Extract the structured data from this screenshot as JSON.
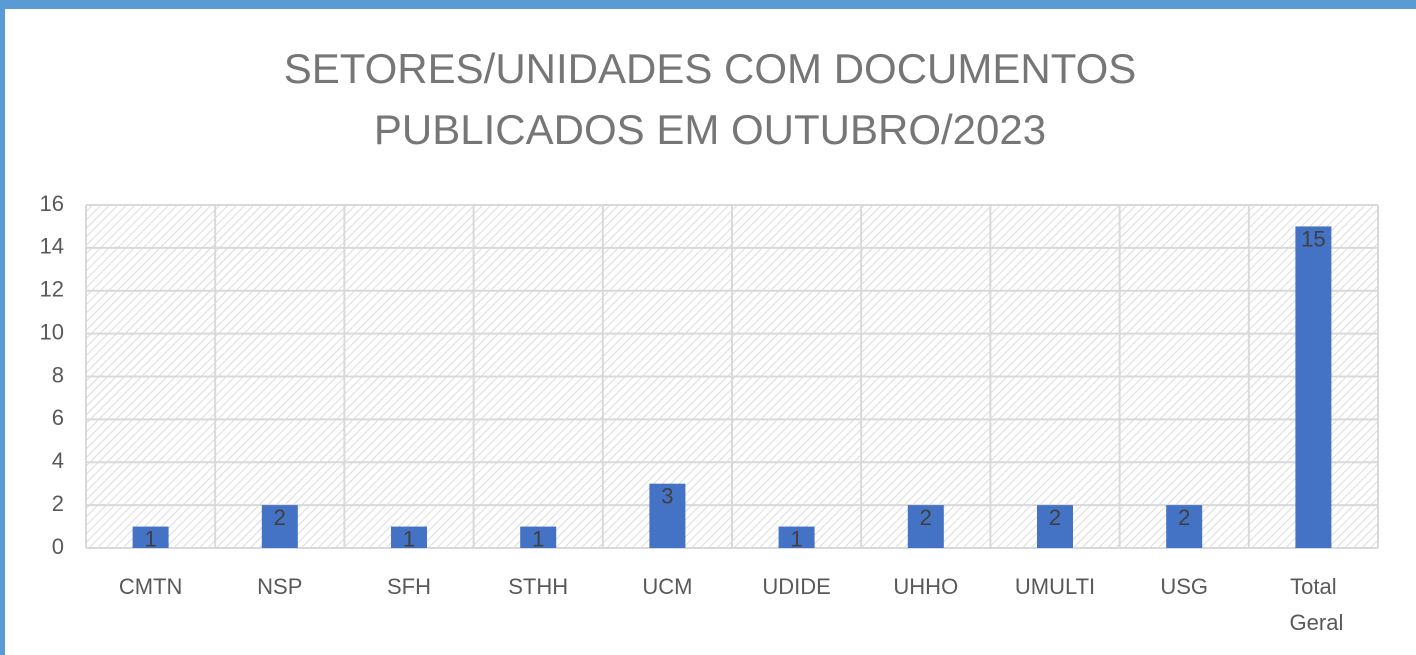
{
  "chart_data": {
    "type": "bar",
    "title": [
      "SETORES/UNIDADES COM DOCUMENTOS",
      "PUBLICADOS EM OUTUBRO/2023"
    ],
    "categories": [
      "CMTN",
      "NSP",
      "SFH",
      "STHH",
      "UCM",
      "UDIDE",
      "UHHO",
      "UMULTI",
      "USG",
      "Total Geral"
    ],
    "values": [
      1,
      2,
      1,
      1,
      3,
      1,
      2,
      2,
      2,
      15
    ],
    "color": "#4472c4",
    "ylim": [
      0,
      16
    ],
    "yticks": [
      0,
      2,
      4,
      6,
      8,
      10,
      12,
      14,
      16
    ],
    "grid": true
  }
}
